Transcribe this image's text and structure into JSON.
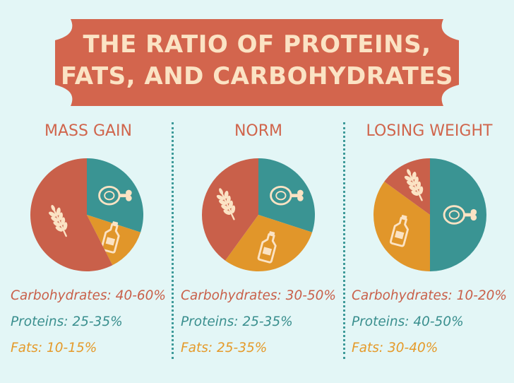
{
  "title": {
    "line1": "THE RATIO OF PROTEINS,",
    "line2": "FATS, AND CARBOHYDRATES"
  },
  "colors": {
    "background": "#e3f6f6",
    "banner": "#d3654d",
    "banner_text": "#fbe3c4",
    "carbohydrates": "#c9604a",
    "proteins": "#3a9493",
    "fats": "#e1962a",
    "icon": "#fbe3c4"
  },
  "chart_data": [
    {
      "type": "pie",
      "title": "MASS GAIN",
      "labels": [
        "Proteins",
        "Fats",
        "Carbohydrates"
      ],
      "values": [
        30,
        12.5,
        57.5
      ],
      "icons": [
        "ham-icon",
        "bottle-icon",
        "wheat-icon"
      ],
      "legend": [
        {
          "key": "carbohydrates",
          "text": "Carbohydrates: 40-60%"
        },
        {
          "key": "proteins",
          "text": "Proteins: 25-35%"
        },
        {
          "key": "fats",
          "text": "Fats: 10-15%"
        }
      ]
    },
    {
      "type": "pie",
      "title": "NORM",
      "labels": [
        "Proteins",
        "Fats",
        "Carbohydrates"
      ],
      "values": [
        30,
        30,
        40
      ],
      "icons": [
        "ham-icon",
        "bottle-icon",
        "wheat-icon"
      ],
      "legend": [
        {
          "key": "carbohydrates",
          "text": "Carbohydrates: 30-50%"
        },
        {
          "key": "proteins",
          "text": "Proteins: 25-35%"
        },
        {
          "key": "fats",
          "text": "Fats: 25-35%"
        }
      ]
    },
    {
      "type": "pie",
      "title": "LOSING WEIGHT",
      "labels": [
        "Proteins",
        "Fats",
        "Carbohydrates"
      ],
      "values": [
        50,
        35,
        15
      ],
      "icons": [
        "ham-icon",
        "bottle-icon",
        "wheat-icon"
      ],
      "legend": [
        {
          "key": "carbohydrates",
          "text": "Carbohydrates: 10-20%"
        },
        {
          "key": "proteins",
          "text": "Proteins: 40-50%"
        },
        {
          "key": "fats",
          "text": "Fats: 30-40%"
        }
      ]
    }
  ]
}
